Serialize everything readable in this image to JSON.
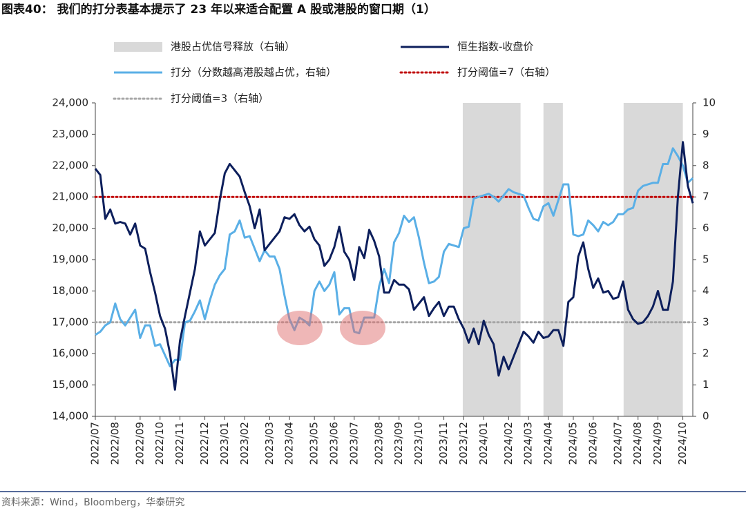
{
  "chart_data": {
    "type": "line",
    "title": "图表40： 我们的打分表基本提示了 23 年以来适合配置 A 股或港股的窗口期（1）",
    "source": "资料来源：Wind，Bloomberg，华泰研究",
    "categories": [
      "2022/07",
      null,
      null,
      null,
      "2022/08",
      null,
      null,
      null,
      null,
      "2022/09",
      null,
      null,
      null,
      "2022/10",
      null,
      null,
      null,
      "2022/11",
      null,
      null,
      null,
      null,
      "2022/12",
      null,
      null,
      null,
      "2023/01",
      null,
      null,
      null,
      "2023/02",
      null,
      null,
      null,
      null,
      "2023/03",
      null,
      null,
      null,
      "2023/04",
      null,
      null,
      null,
      null,
      "2023/05",
      null,
      null,
      null,
      "2023/06",
      null,
      null,
      null,
      "2023/07",
      null,
      null,
      null,
      null,
      "2023/08",
      null,
      null,
      null,
      "2023/09",
      null,
      null,
      null,
      "2023/10",
      null,
      null,
      null,
      null,
      "2023/11",
      null,
      null,
      null,
      "2023/12",
      null,
      null,
      null,
      "2024/01",
      null,
      null,
      null,
      null,
      "2024/02",
      null,
      null,
      null,
      "2024/03",
      null,
      null,
      null,
      "2024/04",
      null,
      null,
      null,
      null,
      "2024/05",
      null,
      null,
      null,
      "2024/06",
      null,
      null,
      null,
      null,
      "2024/07",
      null,
      null,
      null,
      "2024/08",
      null,
      null,
      null,
      "2024/09",
      null,
      null,
      null,
      null,
      "2024/10",
      null,
      null
    ],
    "series": [
      {
        "name": "恒生指数-收盘价",
        "color": "#0d1f5c",
        "values": [
          21900,
          21700,
          20300,
          20600,
          20150,
          20200,
          20150,
          19800,
          20150,
          19450,
          19350,
          18600,
          17950,
          17200,
          16800,
          16000,
          14850,
          16400,
          17200,
          17950,
          18700,
          19900,
          19450,
          19650,
          19850,
          20900,
          21750,
          22050,
          21850,
          21650,
          21150,
          20700,
          20000,
          20600,
          19300,
          19500,
          19700,
          19900,
          20350,
          20300,
          20450,
          20100,
          19900,
          20050,
          19650,
          19450,
          18800,
          19000,
          19400,
          20050,
          19250,
          19000,
          18350,
          19400,
          19050,
          19950,
          19600,
          19100,
          17950,
          17950,
          18350,
          18200,
          18200,
          18050,
          17400,
          17600,
          17800,
          17200,
          17450,
          17650,
          17200,
          17500,
          17500,
          17100,
          16800,
          16350,
          16800,
          16300,
          17050,
          16600,
          16300,
          15300,
          15900,
          15500,
          15900,
          16300,
          16700,
          16550,
          16350,
          16700,
          16500,
          16550,
          16750,
          16750,
          16250,
          17650,
          17800,
          19100,
          19550,
          18700,
          18100,
          18400,
          17950,
          18000,
          17750,
          17800,
          18300,
          17400,
          17100,
          16950,
          17000,
          17200,
          17500,
          18000,
          17400,
          17400,
          18300,
          21000,
          22750,
          21350,
          20800
        ]
      },
      {
        "name": "打分（分数越高港股越占优，右轴）",
        "color": "#5aafe6",
        "axis": "y2",
        "values": [
          2.6,
          2.7,
          2.9,
          3.0,
          3.6,
          3.1,
          2.9,
          3.15,
          3.4,
          2.5,
          2.9,
          2.9,
          2.25,
          2.3,
          1.95,
          1.6,
          1.8,
          1.8,
          3.0,
          3.05,
          3.35,
          3.7,
          3.1,
          3.7,
          4.2,
          4.5,
          4.7,
          5.8,
          5.9,
          6.25,
          5.7,
          5.75,
          5.35,
          4.95,
          5.3,
          5.1,
          5.1,
          4.7,
          3.85,
          3.1,
          2.75,
          3.15,
          3.05,
          2.9,
          4.0,
          4.3,
          4.0,
          4.2,
          4.6,
          3.25,
          3.45,
          3.45,
          2.7,
          2.65,
          3.15,
          3.15,
          3.15,
          4.15,
          4.7,
          4.25,
          5.55,
          5.85,
          6.4,
          6.2,
          6.35,
          5.7,
          4.9,
          4.25,
          4.3,
          4.45,
          5.25,
          5.5,
          5.45,
          5.4,
          6.0,
          6.05,
          6.95,
          7.0,
          7.05,
          7.1,
          7.0,
          6.85,
          7.05,
          7.25,
          7.15,
          7.1,
          7.05,
          6.65,
          6.3,
          6.25,
          6.7,
          6.8,
          6.4,
          6.9,
          7.4,
          7.4,
          5.8,
          5.75,
          5.8,
          6.25,
          6.1,
          5.9,
          6.2,
          6.1,
          6.2,
          6.45,
          6.45,
          6.6,
          6.65,
          7.2,
          7.35,
          7.4,
          7.45,
          7.45,
          8.05,
          8.05,
          8.55,
          8.3,
          8.0,
          7.45,
          7.6
        ]
      }
    ],
    "thresholds": [
      {
        "name": "打分阈值=7（右轴）",
        "value": 7,
        "color": "#c00000",
        "axis": "y2"
      },
      {
        "name": "打分阈值=3（右轴）",
        "value": 3,
        "color": "#a6a6a6",
        "axis": "y2"
      }
    ],
    "shaded": {
      "name": "港股占优信号释放（右轴）",
      "color": "#d9d9d9",
      "ranges": [
        [
          73.8,
          85.4
        ],
        [
          90,
          93.9
        ],
        [
          106.1,
          118
        ]
      ]
    },
    "ylim": [
      14000,
      24000
    ],
    "yticks": [
      {
        "value": 14000,
        "label": "14,000"
      },
      {
        "value": 15000,
        "label": "15,000"
      },
      {
        "value": 16000,
        "label": "16,000"
      },
      {
        "value": 17000,
        "label": "17,000"
      },
      {
        "value": 18000,
        "label": "18,000"
      },
      {
        "value": 19000,
        "label": "19,000"
      },
      {
        "value": 20000,
        "label": "20,000"
      },
      {
        "value": 21000,
        "label": "21,000"
      },
      {
        "value": 22000,
        "label": "22,000"
      },
      {
        "value": 23000,
        "label": "23,000"
      },
      {
        "value": 24000,
        "label": "24,000"
      }
    ],
    "y2lim": [
      0,
      10
    ],
    "y2ticks": [
      0,
      1,
      2,
      3,
      4,
      5,
      6,
      7,
      8,
      9,
      10
    ]
  }
}
